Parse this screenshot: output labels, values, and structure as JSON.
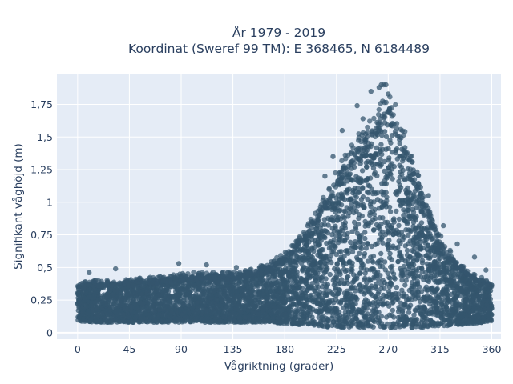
{
  "chart_data": {
    "type": "scatter",
    "title_line1": "År 1979 - 2019",
    "title_line2": "Koordinat (Sweref 99 TM): E 368465, N 6184489",
    "xlabel": "Vågriktning (grader)",
    "ylabel": "Signifikant våghöjd (m)",
    "xlim": [
      -18,
      368
    ],
    "ylim": [
      -0.05,
      1.98
    ],
    "xticks": [
      0,
      45,
      90,
      135,
      180,
      225,
      270,
      315,
      360
    ],
    "xtick_labels": [
      "0",
      "45",
      "90",
      "135",
      "180",
      "225",
      "270",
      "315",
      "360"
    ],
    "yticks": [
      0,
      0.25,
      0.5,
      0.75,
      1,
      1.25,
      1.5,
      1.75
    ],
    "ytick_labels": [
      "0",
      "0,25",
      "0,5",
      "0,75",
      "1",
      "1,25",
      "1,5",
      "1,75"
    ],
    "grid": true,
    "marker_color": "#34566e",
    "plot_background": "#e5ecf6",
    "envelope": {
      "x": [
        0,
        15,
        30,
        45,
        60,
        75,
        90,
        105,
        120,
        135,
        150,
        165,
        180,
        195,
        210,
        225,
        240,
        255,
        265,
        270,
        275,
        285,
        300,
        315,
        330,
        345,
        360
      ],
      "lower": [
        0.09,
        0.08,
        0.08,
        0.08,
        0.08,
        0.08,
        0.08,
        0.08,
        0.08,
        0.08,
        0.08,
        0.08,
        0.07,
        0.06,
        0.05,
        0.04,
        0.04,
        0.04,
        0.04,
        0.04,
        0.04,
        0.04,
        0.04,
        0.05,
        0.06,
        0.07,
        0.09
      ],
      "upper": [
        0.36,
        0.38,
        0.38,
        0.39,
        0.4,
        0.41,
        0.43,
        0.44,
        0.44,
        0.44,
        0.46,
        0.5,
        0.58,
        0.72,
        0.92,
        1.18,
        1.4,
        1.55,
        1.68,
        1.75,
        1.68,
        1.45,
        1.05,
        0.72,
        0.52,
        0.42,
        0.37
      ]
    },
    "outliers": [
      {
        "x": 262,
        "y": 1.88
      },
      {
        "x": 264,
        "y": 1.9
      },
      {
        "x": 266,
        "y": 1.9
      },
      {
        "x": 268,
        "y": 1.9
      },
      {
        "x": 255,
        "y": 1.85
      },
      {
        "x": 270,
        "y": 1.83
      },
      {
        "x": 243,
        "y": 1.74
      },
      {
        "x": 248,
        "y": 1.64
      },
      {
        "x": 275,
        "y": 1.6
      },
      {
        "x": 280,
        "y": 1.45
      },
      {
        "x": 285,
        "y": 1.38
      },
      {
        "x": 230,
        "y": 1.55
      },
      {
        "x": 222,
        "y": 1.35
      },
      {
        "x": 215,
        "y": 1.2
      },
      {
        "x": 305,
        "y": 1.05
      },
      {
        "x": 318,
        "y": 0.82
      },
      {
        "x": 330,
        "y": 0.68
      },
      {
        "x": 345,
        "y": 0.58
      },
      {
        "x": 355,
        "y": 0.48
      },
      {
        "x": 88,
        "y": 0.53
      },
      {
        "x": 112,
        "y": 0.52
      },
      {
        "x": 138,
        "y": 0.5
      },
      {
        "x": 160,
        "y": 0.48
      },
      {
        "x": 175,
        "y": 0.55
      },
      {
        "x": 190,
        "y": 0.7
      },
      {
        "x": 200,
        "y": 0.82
      },
      {
        "x": 10,
        "y": 0.46
      },
      {
        "x": 33,
        "y": 0.49
      }
    ]
  }
}
